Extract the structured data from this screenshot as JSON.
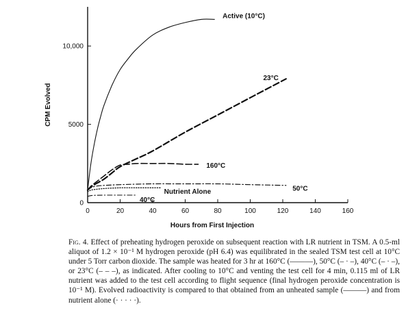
{
  "chart_data": {
    "type": "line",
    "xlabel": "Hours from First Injection",
    "ylabel": "CPM Evolved",
    "xlim": [
      0,
      160
    ],
    "ylim": [
      0,
      12500
    ],
    "x_ticks": [
      0,
      20,
      40,
      60,
      80,
      100,
      120,
      140,
      160
    ],
    "x_tick_labels": [
      "0",
      "20",
      "40",
      "60",
      "80",
      "100",
      "120",
      "140",
      "160"
    ],
    "y_ticks": [
      0,
      5000,
      10000
    ],
    "y_tick_labels": [
      "0",
      "5000",
      "10,000"
    ],
    "grid": false,
    "legend": "none (curves labeled directly)",
    "series": [
      {
        "name": "Active (10°C)",
        "style": "solid",
        "x": [
          0,
          1,
          2,
          4,
          6,
          8,
          10,
          15,
          20,
          25,
          30,
          40,
          50,
          60,
          70,
          78
        ],
        "y": [
          800,
          1700,
          2500,
          3700,
          4700,
          5500,
          6200,
          7500,
          8500,
          9200,
          9800,
          10700,
          11200,
          11500,
          11700,
          11700
        ]
      },
      {
        "name": "23°C",
        "style": "long-dash",
        "x": [
          0,
          2,
          5,
          10,
          15,
          20,
          30,
          40,
          60,
          80,
          100,
          122
        ],
        "y": [
          800,
          1000,
          1200,
          1500,
          1900,
          2300,
          2800,
          3300,
          4500,
          5600,
          6700,
          7900
        ]
      },
      {
        "name": "160°C",
        "style": "long-dash",
        "x": [
          0,
          2,
          5,
          10,
          15,
          20,
          25,
          30,
          40,
          50,
          60,
          68
        ],
        "y": [
          800,
          1050,
          1300,
          1700,
          2100,
          2400,
          2450,
          2500,
          2500,
          2500,
          2450,
          2450
        ]
      },
      {
        "name": "50°C",
        "style": "dash-dot",
        "x": [
          0,
          2,
          5,
          10,
          20,
          40,
          60,
          80,
          100,
          122
        ],
        "y": [
          800,
          950,
          1050,
          1100,
          1150,
          1200,
          1200,
          1200,
          1150,
          1100
        ]
      },
      {
        "name": "Nutrient Alone",
        "style": "dotted",
        "x": [
          0,
          2,
          5,
          10,
          20,
          30,
          40,
          45
        ],
        "y": [
          700,
          800,
          850,
          900,
          950,
          950,
          950,
          950
        ]
      },
      {
        "name": "40°C",
        "style": "dash-dot",
        "x": [
          0,
          2,
          5,
          10,
          20,
          30
        ],
        "y": [
          400,
          450,
          470,
          480,
          480,
          480
        ]
      }
    ],
    "label_anchors": {
      "Active (10°C)": [
        83,
        11950
      ],
      "23°C": [
        108,
        8000
      ],
      "160°C": [
        73,
        2400
      ],
      "50°C": [
        126,
        950
      ],
      "Nutrient Alone": [
        47,
        750
      ],
      "40°C": [
        32,
        220
      ]
    }
  },
  "caption": {
    "fig_label": "Fig. 4.",
    "text": "Effect of preheating hydrogen peroxide on subsequent reaction with LR nutrient in TSM. A 0.5-ml aliquot of 1.2 × 10⁻¹ M hydrogen peroxide (pH 6.4) was equilibrated in the sealed TSM test cell at 10°C under 5 Torr carbon dioxide. The sample was heated for 3 hr at 160°C (———), 50°C (– · –), 40°C (– · –), or 23°C (– – –), as indicated. After cooling to 10°C and venting the test cell for 4 min, 0.115 ml of LR nutrient was added to the test cell according to flight sequence (final hydrogen peroxide concentration is 10⁻¹ M). Evolved radioactivity is compared to that obtained from an unheated sample (———) and from nutrient alone (· · · · ·)."
  }
}
